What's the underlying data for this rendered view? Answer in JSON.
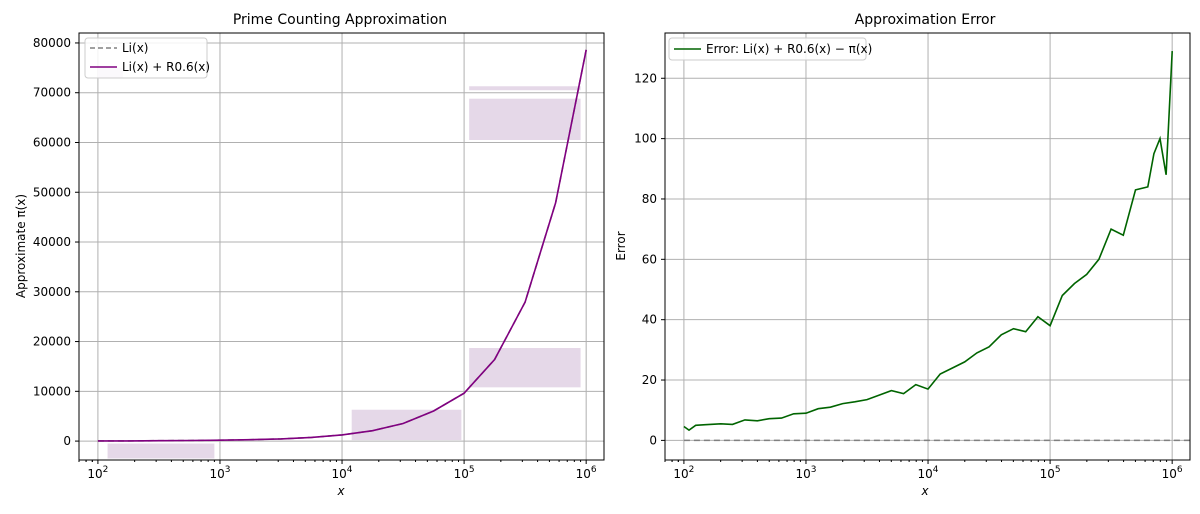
{
  "colors": {
    "li": "#808080",
    "approx": "#800080",
    "band": "#e5d8e8",
    "error": "#006400",
    "grid": "#b0b0b0"
  },
  "chart_data": [
    {
      "type": "line",
      "title": "Prime Counting Approximation",
      "xlabel": "x",
      "ylabel": "Approximate π(x)",
      "xscale": "log",
      "xlim": [
        70,
        1400000
      ],
      "ylim": [
        -3800,
        82000
      ],
      "x_tick_labels": [
        {
          "base": "10",
          "exp": "2",
          "value": 100
        },
        {
          "base": "10",
          "exp": "3",
          "value": 1000
        },
        {
          "base": "10",
          "exp": "4",
          "value": 10000
        },
        {
          "base": "10",
          "exp": "5",
          "value": 100000
        },
        {
          "base": "10",
          "exp": "6",
          "value": 1000000
        }
      ],
      "y_ticks": [
        0,
        10000,
        20000,
        30000,
        40000,
        50000,
        60000,
        70000,
        80000
      ],
      "grid": true,
      "legend_position": "top-left",
      "legend": [
        {
          "name": "Li(x)",
          "style": "dashed",
          "color_key": "li"
        },
        {
          "name": "Li(x) + R0.6(x)",
          "style": "solid",
          "color_key": "approx"
        }
      ],
      "series": [
        {
          "name": "Li(x)",
          "x": [
            100,
            178,
            316,
            562,
            1000,
            1778,
            3162,
            5623,
            10000,
            17783,
            31623,
            56234,
            100000,
            177828,
            316228,
            562341,
            1000000
          ],
          "values": [
            30,
            47,
            74,
            117,
            177,
            279,
            448,
            737,
            1246,
            2090,
            3530,
            6050,
            9630,
            16390,
            27930,
            47860,
            78630
          ]
        },
        {
          "name": "Li(x) + R0.6(x)",
          "x": [
            100,
            178,
            316,
            562,
            1000,
            1778,
            3162,
            5623,
            10000,
            17783,
            31623,
            56234,
            100000,
            177828,
            316228,
            562341,
            1000000
          ],
          "values": [
            30,
            47,
            74,
            117,
            177,
            279,
            448,
            737,
            1246,
            2090,
            3530,
            6050,
            9630,
            16390,
            27930,
            47860,
            78630
          ]
        }
      ],
      "bands": [
        {
          "x0": 120,
          "x1": 900,
          "y0": -3500,
          "y1": -500
        },
        {
          "x0": 100,
          "x1": 160,
          "y0": 73000,
          "y1": 75000
        },
        {
          "x0": 12000,
          "x1": 95000,
          "y0": 200,
          "y1": 6300
        },
        {
          "x0": 110000,
          "x1": 900000,
          "y0": 10800,
          "y1": 18700
        },
        {
          "x0": 110000,
          "x1": 900000,
          "y0": 60500,
          "y1": 68800
        },
        {
          "x0": 110000,
          "x1": 900000,
          "y0": 70500,
          "y1": 71300
        }
      ]
    },
    {
      "type": "line",
      "title": "Approximation Error",
      "xlabel": "x",
      "ylabel": "Error",
      "xscale": "log",
      "xlim": [
        70,
        1400000
      ],
      "ylim": [
        -6.5,
        135
      ],
      "x_tick_labels": [
        {
          "base": "10",
          "exp": "2",
          "value": 100
        },
        {
          "base": "10",
          "exp": "3",
          "value": 1000
        },
        {
          "base": "10",
          "exp": "4",
          "value": 10000
        },
        {
          "base": "10",
          "exp": "5",
          "value": 100000
        },
        {
          "base": "10",
          "exp": "6",
          "value": 1000000
        }
      ],
      "y_ticks": [
        0,
        20,
        40,
        60,
        80,
        100,
        120
      ],
      "grid": true,
      "legend_position": "top-left",
      "legend": [
        {
          "name": "Error: Li(x) + R0.6(x) − π(x)",
          "style": "solid",
          "color_key": "error"
        }
      ],
      "reference_line": {
        "y": 0,
        "style": "dashed",
        "color_key": "li"
      },
      "series": [
        {
          "name": "Error: Li(x) + R0.6(x) − π(x)",
          "x": [
            100,
            110,
            125,
            150,
            200,
            250,
            316,
            400,
            500,
            630,
            794,
            1000,
            1260,
            1585,
            2000,
            2512,
            3162,
            3981,
            5012,
            6310,
            7943,
            10000,
            12589,
            15849,
            19953,
            25119,
            31623,
            39811,
            50119,
            63096,
            79433,
            100000,
            125893,
            158489,
            199526,
            251189,
            316228,
            398107,
            501187,
            630957,
            707946,
            794328,
            891251,
            1000000
          ],
          "values": [
            4.6,
            3.4,
            5.0,
            5.2,
            5.5,
            5.3,
            6.8,
            6.5,
            7.2,
            7.4,
            8.8,
            9.0,
            10.5,
            11.0,
            12.2,
            12.8,
            13.5,
            15.0,
            16.5,
            15.5,
            18.5,
            17.0,
            22.0,
            24.0,
            26.0,
            29.0,
            31.0,
            35.0,
            37.0,
            36.0,
            41.0,
            38.0,
            48.0,
            52.0,
            55.0,
            60.0,
            70.0,
            68.0,
            83.0,
            84.0,
            95.0,
            100.0,
            88.0,
            129.0
          ]
        }
      ]
    }
  ]
}
